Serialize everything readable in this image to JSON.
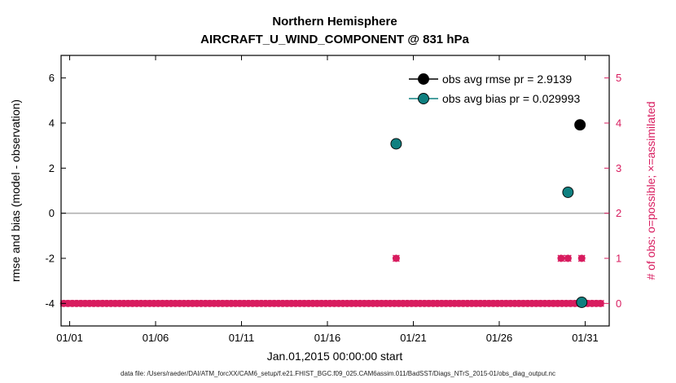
{
  "footer": {
    "caption": "data file: /Users/raeder/DAI/ATM_forcXX/CAM6_setup/f.e21.FHIST_BGC.f09_025.CAM6assim.011/BadSST/Diags_NTrS_2015-01/obs_diag_output.nc"
  },
  "chart_data": {
    "type": "scatter",
    "title": "Northern Hemisphere",
    "subtitle": "AIRCRAFT_U_WIND_COMPONENT @ 831 hPa",
    "xlabel": "Jan.01,2015 00:00:00 start",
    "grid": "off",
    "legend_position": "northeast-inside",
    "colors": {
      "rmse": "#000000",
      "bias": "#0f8080",
      "obs_count": "#d81c5f",
      "zero_line": "#b0b0b0"
    },
    "left_axis": {
      "label": "rmse and bias (model - observation)",
      "ticks": [
        -4,
        -2,
        0,
        2,
        4,
        6
      ],
      "lim": [
        -5,
        7
      ]
    },
    "right_axis": {
      "label": "# of obs: o=possible; ×=assimilated",
      "ticks": [
        0,
        1,
        2,
        3,
        4,
        5
      ],
      "lim": [
        -0.5,
        5.5
      ]
    },
    "x_axis": {
      "tick_labels": [
        "01/01",
        "01/06",
        "01/11",
        "01/16",
        "01/21",
        "01/26",
        "01/31"
      ],
      "tick_days": [
        0,
        5,
        10,
        15,
        20,
        25,
        30
      ],
      "lim_days": [
        -0.5,
        31.4
      ]
    },
    "zero_line_value": 0,
    "series": [
      {
        "name": "obs-count-row",
        "axis": "right",
        "marker": "circle-x",
        "color": "#d81c5f",
        "uniform_row": {
          "start_day": -0.35,
          "end_day": 31.0,
          "step_days": 0.25,
          "value": 0
        }
      },
      {
        "name": "obs-count-events",
        "axis": "right",
        "marker": "circle-x",
        "color": "#d81c5f",
        "points": [
          {
            "day": 19.0,
            "value": 1
          },
          {
            "day": 28.6,
            "value": 1
          },
          {
            "day": 29.0,
            "value": 1
          },
          {
            "day": 29.8,
            "value": 1
          }
        ]
      },
      {
        "name": "obs-avg-bias",
        "axis": "left",
        "marker": "filled-circle",
        "color": "#0f8080",
        "points": [
          {
            "day": 19.0,
            "value": 3.08
          },
          {
            "day": 29.0,
            "value": 0.93
          },
          {
            "day": 29.8,
            "value": -3.95
          }
        ]
      },
      {
        "name": "obs-avg-rmse",
        "axis": "left",
        "marker": "filled-circle",
        "color": "#000000",
        "points": [
          {
            "day": 29.7,
            "value": 3.92
          }
        ]
      }
    ],
    "legend": [
      {
        "label": "obs avg rmse pr = 2.9139",
        "color": "#000000"
      },
      {
        "label": "obs avg bias pr = 0.029993",
        "color": "#0f8080"
      }
    ]
  }
}
